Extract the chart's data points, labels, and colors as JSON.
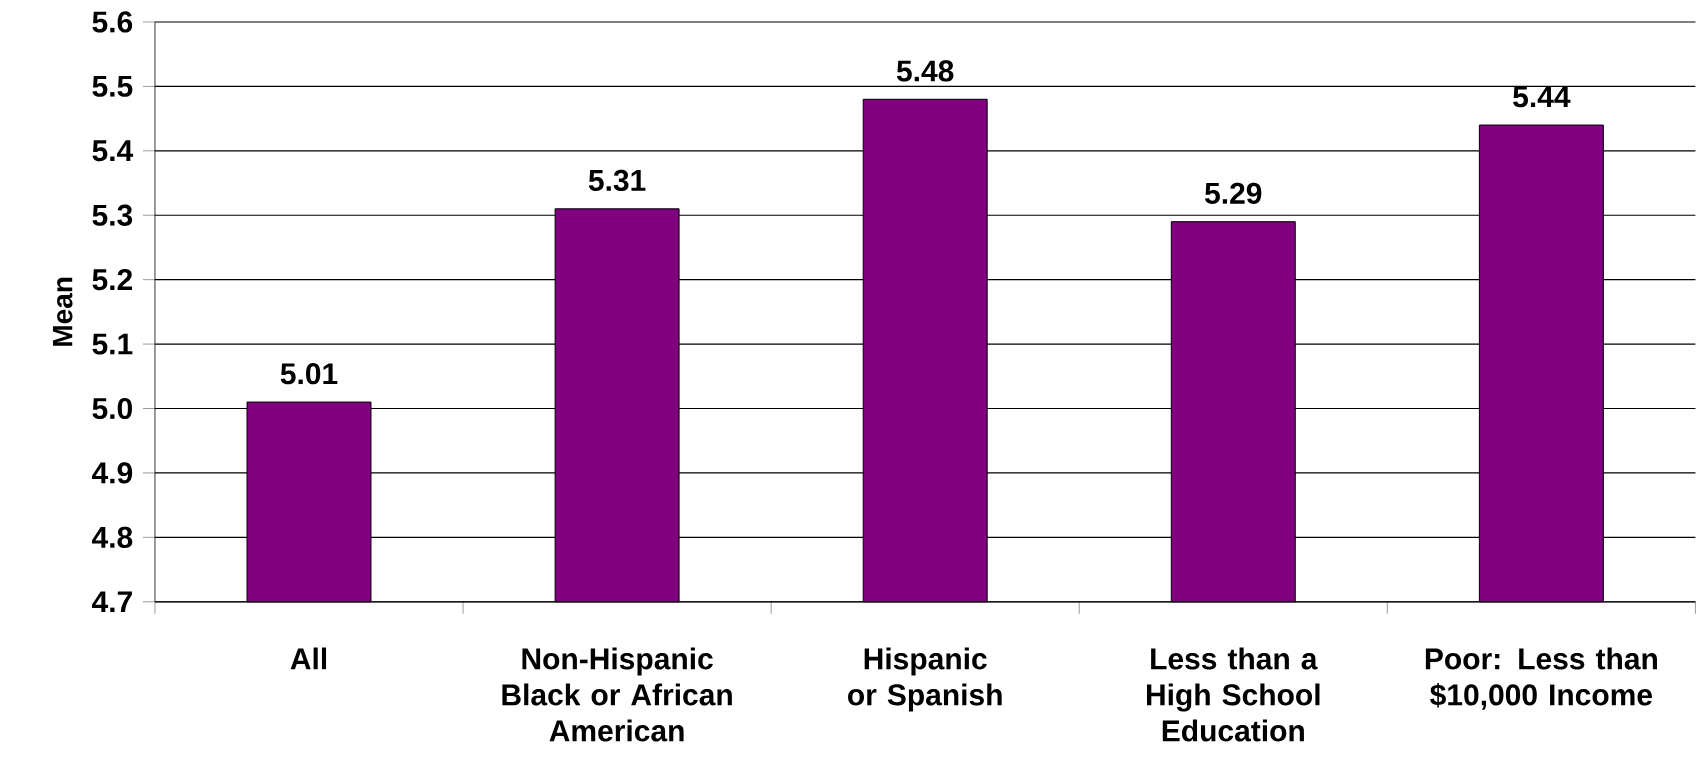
{
  "chart_data": {
    "type": "bar",
    "ylabel": "Mean",
    "categories": [
      "All",
      "Non-Hispanic Black or African American",
      "Hispanic or Spanish",
      "Less than a High School Education",
      "Poor: Less than $10,000 Income"
    ],
    "values": [
      5.01,
      5.31,
      5.48,
      5.29,
      5.44
    ],
    "color": "#800080",
    "ylim": [
      4.7,
      5.6
    ],
    "yticks": [
      4.7,
      4.8,
      4.9,
      {
        "value": 5.0,
        "label": "5.0"
      },
      5.1,
      5.2,
      5.3,
      5.4,
      5.5,
      5.6
    ],
    "grid": "y",
    "data_labels": true
  }
}
